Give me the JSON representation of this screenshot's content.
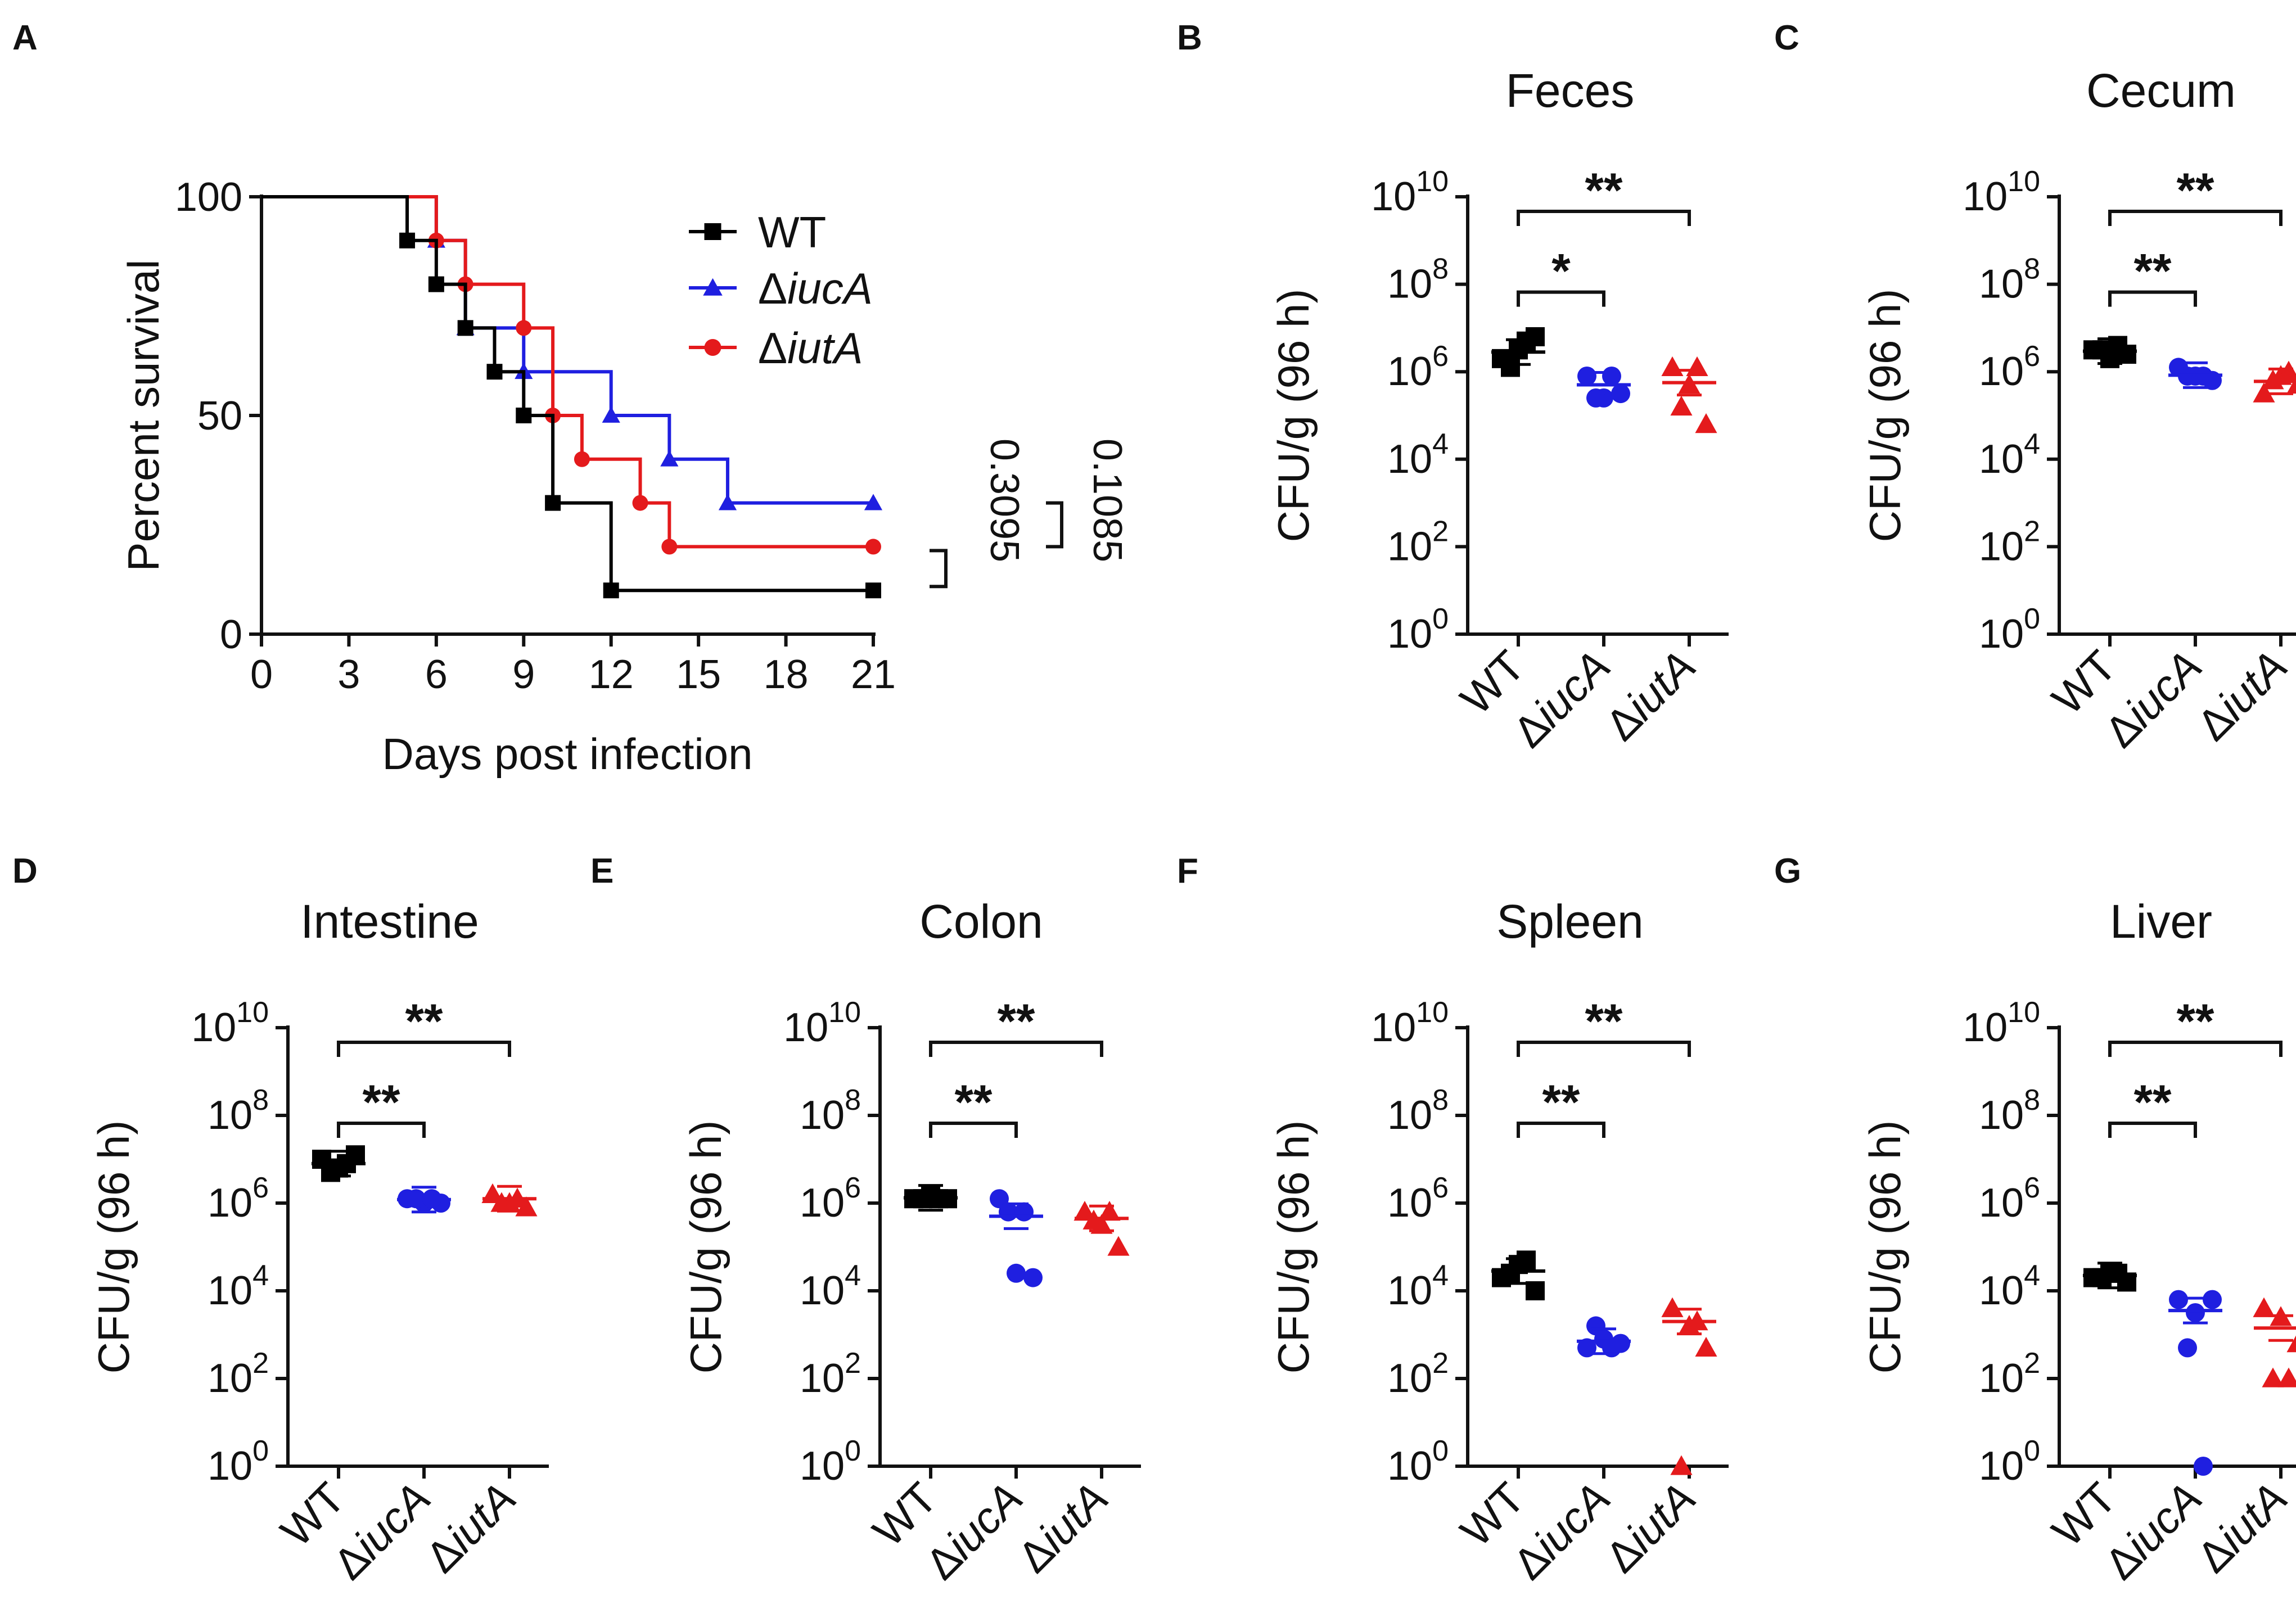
{
  "colors": {
    "WT": "#000000",
    "iucA": "#1f1fe0",
    "iutA": "#e41a1c"
  },
  "chart_data": [
    {
      "id": "A",
      "type": "line",
      "subtype": "kaplan-meier",
      "panel_letter": "A",
      "xlabel": "Days post infection",
      "ylabel": "Percent survival",
      "xlim": [
        0,
        21
      ],
      "ylim": [
        0,
        100
      ],
      "xticks": [
        "0",
        "3",
        "6",
        "9",
        "12",
        "15",
        "18",
        "21"
      ],
      "yticks": [
        "0",
        "50",
        "100"
      ],
      "legend_position": "top-right",
      "series": [
        {
          "key": "WT",
          "prefix": "",
          "name": "WT",
          "marker": "square",
          "x": [
            0,
            5,
            6,
            7,
            8,
            9,
            10,
            12,
            21
          ],
          "y": [
            100,
            90,
            80,
            70,
            60,
            50,
            30,
            10,
            10
          ]
        },
        {
          "key": "iucA",
          "prefix": "Δ",
          "name": "iucA",
          "marker": "triangle",
          "x": [
            0,
            6,
            7,
            9,
            12,
            14,
            16,
            21
          ],
          "y": [
            100,
            90,
            70,
            60,
            50,
            40,
            30,
            30
          ]
        },
        {
          "key": "iutA",
          "prefix": "Δ",
          "name": "iutA",
          "marker": "circle",
          "x": [
            0,
            6,
            7,
            9,
            10,
            11,
            13,
            14,
            21
          ],
          "y": [
            100,
            90,
            80,
            70,
            50,
            40,
            30,
            20,
            20
          ]
        }
      ],
      "pvalues": [
        {
          "label": "0.3095",
          "between": [
            "WT",
            "iutA"
          ]
        },
        {
          "label": "0.1085",
          "between": [
            "iucA",
            "iutA"
          ]
        }
      ]
    },
    {
      "id": "B",
      "type": "scatter",
      "panel_letter": "B",
      "title": "Feces",
      "ylabel": "CFU/g (96 h)",
      "yscale": "log10",
      "ylim_exp": [
        0,
        10
      ],
      "ytick_exps": [
        0,
        2,
        4,
        6,
        8,
        10
      ],
      "groups": [
        {
          "key": "WT",
          "prefix": "",
          "name": "WT",
          "marker": "square",
          "log_values": [
            6.3,
            6.5,
            6.8,
            6.1,
            6.7
          ],
          "mean_log": 6.45
        },
        {
          "key": "iucA",
          "prefix": "Δ",
          "name": "iucA",
          "marker": "circle",
          "log_values": [
            5.9,
            5.4,
            5.5,
            5.4,
            5.9
          ],
          "mean_log": 5.7
        },
        {
          "key": "iutA",
          "prefix": "Δ",
          "name": "iutA",
          "marker": "triangle",
          "log_values": [
            6.1,
            5.7,
            4.8,
            5.2,
            6.1
          ],
          "mean_log": 5.75
        }
      ],
      "significance": [
        {
          "from": 0,
          "to": 1,
          "label": "*"
        },
        {
          "from": 0,
          "to": 2,
          "label": "**"
        }
      ]
    },
    {
      "id": "C",
      "type": "scatter",
      "panel_letter": "C",
      "title": "Cecum",
      "ylabel": "CFU/g (96 h)",
      "yscale": "log10",
      "ylim_exp": [
        0,
        10
      ],
      "ytick_exps": [
        0,
        2,
        4,
        6,
        8,
        10
      ],
      "groups": [
        {
          "key": "WT",
          "prefix": "",
          "name": "WT",
          "marker": "square",
          "log_values": [
            6.5,
            6.3,
            6.4,
            6.5,
            6.6
          ],
          "mean_log": 6.47
        },
        {
          "key": "iucA",
          "prefix": "Δ",
          "name": "iucA",
          "marker": "circle",
          "log_values": [
            6.1,
            5.9,
            5.8,
            5.9,
            5.9
          ],
          "mean_log": 5.92
        },
        {
          "key": "iutA",
          "prefix": "Δ",
          "name": "iutA",
          "marker": "triangle",
          "log_values": [
            5.5,
            5.9,
            5.7,
            5.8,
            6.0
          ],
          "mean_log": 5.78
        }
      ],
      "significance": [
        {
          "from": 0,
          "to": 1,
          "label": "**"
        },
        {
          "from": 0,
          "to": 2,
          "label": "**"
        }
      ]
    },
    {
      "id": "D",
      "type": "scatter",
      "panel_letter": "D",
      "title": "Intestine",
      "ylabel": "CFU/g (96 h)",
      "yscale": "log10",
      "ylim_exp": [
        0,
        10
      ],
      "ytick_exps": [
        0,
        2,
        4,
        6,
        8,
        10
      ],
      "groups": [
        {
          "key": "WT",
          "prefix": "",
          "name": "WT",
          "marker": "square",
          "log_values": [
            7.0,
            6.8,
            7.1,
            6.7,
            6.9
          ],
          "mean_log": 6.9
        },
        {
          "key": "iucA",
          "prefix": "Δ",
          "name": "iucA",
          "marker": "circle",
          "log_values": [
            6.1,
            6.0,
            6.0,
            6.1,
            6.1
          ],
          "mean_log": 6.08
        },
        {
          "key": "iutA",
          "prefix": "Δ",
          "name": "iutA",
          "marker": "triangle",
          "log_values": [
            6.2,
            6.0,
            5.9,
            6.0,
            6.1
          ],
          "mean_log": 6.1
        }
      ],
      "significance": [
        {
          "from": 0,
          "to": 1,
          "label": "**"
        },
        {
          "from": 0,
          "to": 2,
          "label": "**"
        }
      ]
    },
    {
      "id": "E",
      "type": "scatter",
      "panel_letter": "E",
      "title": "Colon",
      "ylabel": "CFU/g (96 h)",
      "yscale": "log10",
      "ylim_exp": [
        0,
        10
      ],
      "ytick_exps": [
        0,
        2,
        4,
        6,
        8,
        10
      ],
      "groups": [
        {
          "key": "WT",
          "prefix": "",
          "name": "WT",
          "marker": "square",
          "log_values": [
            6.1,
            6.2,
            6.1,
            6.1,
            6.1
          ],
          "mean_log": 6.12
        },
        {
          "key": "iucA",
          "prefix": "Δ",
          "name": "iucA",
          "marker": "circle",
          "log_values": [
            6.1,
            4.4,
            4.3,
            5.8,
            5.8
          ],
          "mean_log": 5.7
        },
        {
          "key": "iutA",
          "prefix": "Δ",
          "name": "iutA",
          "marker": "triangle",
          "log_values": [
            5.8,
            5.5,
            5.0,
            5.6,
            5.8
          ],
          "mean_log": 5.65
        }
      ],
      "significance": [
        {
          "from": 0,
          "to": 1,
          "label": "**"
        },
        {
          "from": 0,
          "to": 2,
          "label": "**"
        }
      ]
    },
    {
      "id": "F",
      "type": "scatter",
      "panel_letter": "F",
      "title": "Spleen",
      "ylabel": "CFU/g (96 h)",
      "yscale": "log10",
      "ylim_exp": [
        0,
        10
      ],
      "ytick_exps": [
        0,
        2,
        4,
        6,
        8,
        10
      ],
      "groups": [
        {
          "key": "WT",
          "prefix": "",
          "name": "WT",
          "marker": "square",
          "log_values": [
            4.3,
            4.6,
            4.0,
            4.4,
            4.7
          ],
          "mean_log": 4.45
        },
        {
          "key": "iucA",
          "prefix": "Δ",
          "name": "iucA",
          "marker": "circle",
          "log_values": [
            2.7,
            2.9,
            2.8,
            3.2,
            2.7
          ],
          "mean_log": 2.85
        },
        {
          "key": "iutA",
          "prefix": "Δ",
          "name": "iutA",
          "marker": "triangle",
          "log_values": [
            3.6,
            3.2,
            2.7,
            0.0,
            3.3
          ],
          "mean_log": 3.3
        }
      ],
      "significance": [
        {
          "from": 0,
          "to": 1,
          "label": "**"
        },
        {
          "from": 0,
          "to": 2,
          "label": "**"
        }
      ]
    },
    {
      "id": "G",
      "type": "scatter",
      "panel_letter": "G",
      "title": "Liver",
      "ylabel": "CFU/g (96 h)",
      "yscale": "log10",
      "ylim_exp": [
        0,
        10
      ],
      "ytick_exps": [
        0,
        2,
        4,
        6,
        8,
        10
      ],
      "groups": [
        {
          "key": "WT",
          "prefix": "",
          "name": "WT",
          "marker": "square",
          "log_values": [
            4.3,
            4.4,
            4.2,
            4.3,
            4.4
          ],
          "mean_log": 4.35
        },
        {
          "key": "iucA",
          "prefix": "Δ",
          "name": "iucA",
          "marker": "circle",
          "log_values": [
            3.8,
            3.5,
            3.8,
            2.7,
            0.0
          ],
          "mean_log": 3.55
        },
        {
          "key": "iutA",
          "prefix": "Δ",
          "name": "iutA",
          "marker": "triangle",
          "log_values": [
            3.6,
            3.4,
            2.8,
            2.0,
            2.0
          ],
          "mean_log": 3.15
        }
      ],
      "significance": [
        {
          "from": 0,
          "to": 1,
          "label": "**"
        },
        {
          "from": 0,
          "to": 2,
          "label": "**"
        }
      ]
    }
  ]
}
